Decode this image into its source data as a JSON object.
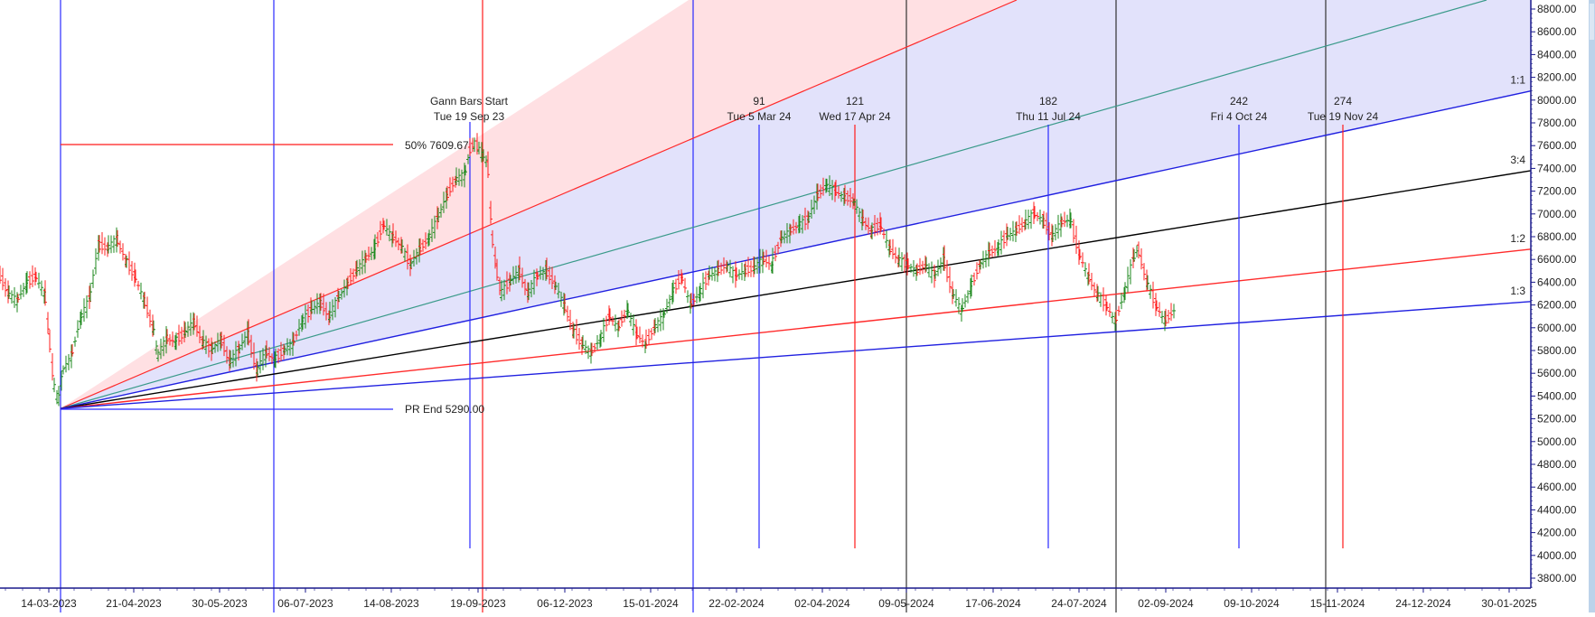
{
  "chart_data": {
    "type": "bar",
    "subtype": "ohlc-with-gann-fan",
    "title": "",
    "xlabel": "",
    "ylabel": "",
    "ylim": [
      3700,
      8850
    ],
    "grid": false,
    "colors": {
      "up": "#1f8a1f",
      "down": "#ff2020",
      "axis": "#1a1a8c",
      "fan_upper_fill": "#ffe0e3",
      "fan_lower_fill": "#e2e2fb"
    },
    "y_ticks": [
      "8800.00",
      "8600.00",
      "8400.00",
      "8200.00",
      "8000.00",
      "7800.00",
      "7600.00",
      "7400.00",
      "7200.00",
      "7000.00",
      "6800.00",
      "6600.00",
      "6400.00",
      "6200.00",
      "6000.00",
      "5800.00",
      "5600.00",
      "5400.00",
      "5200.00",
      "5000.00",
      "4800.00",
      "4600.00",
      "4400.00",
      "4200.00",
      "4000.00",
      "3800.00"
    ],
    "x_ticks": [
      "14-03-2023",
      "21-04-2023",
      "30-05-2023",
      "06-07-2023",
      "14-08-2023",
      "19-09-2023",
      "06-12-2023",
      "15-01-2024",
      "22-02-2024",
      "02-04-2024",
      "09-05-2024",
      "17-06-2024",
      "24-07-2024",
      "02-09-2024",
      "09-10-2024",
      "15-11-2024",
      "24-12-2024",
      "30-01-2025"
    ],
    "gann_fan": {
      "origin_price": 5290.0,
      "lines": [
        {
          "label": "1:1",
          "color": "#2020e0",
          "end_price": 8080
        },
        {
          "label": "3:4",
          "color": "#000000",
          "end_price": 7380
        },
        {
          "label": "1:2",
          "color": "#ff2a2a",
          "end_price": 6690
        },
        {
          "label": "1:3",
          "color": "#2020e0",
          "end_price": 6230
        }
      ]
    },
    "annotations": {
      "gann_start": {
        "line1": "Gann Bars Start",
        "line2": "Tue 19 Sep 23"
      },
      "fifty_pct": "50% 7609.67",
      "pr_end": "PR End 5290.00",
      "bar_counts": [
        {
          "count": "91",
          "date": "Tue 5 Mar 24"
        },
        {
          "count": "121",
          "date": "Wed 17 Apr 24"
        },
        {
          "count": "182",
          "date": "Thu 11 Jul 24"
        },
        {
          "count": "242",
          "date": "Fri 4 Oct 24"
        },
        {
          "count": "274",
          "date": "Tue 19 Nov 24"
        }
      ]
    },
    "price_path": [
      [
        0,
        6470
      ],
      [
        10,
        6300
      ],
      [
        20,
        6240
      ],
      [
        30,
        6380
      ],
      [
        40,
        6450
      ],
      [
        50,
        6300
      ],
      [
        55,
        5900
      ],
      [
        60,
        5500
      ],
      [
        65,
        5360
      ],
      [
        70,
        5620
      ],
      [
        80,
        5750
      ],
      [
        90,
        6080
      ],
      [
        100,
        6250
      ],
      [
        110,
        6720
      ],
      [
        120,
        6700
      ],
      [
        130,
        6780
      ],
      [
        140,
        6600
      ],
      [
        150,
        6450
      ],
      [
        160,
        6250
      ],
      [
        170,
        6000
      ],
      [
        175,
        5750
      ],
      [
        185,
        5900
      ],
      [
        195,
        5880
      ],
      [
        205,
        5950
      ],
      [
        215,
        6050
      ],
      [
        225,
        5880
      ],
      [
        235,
        5800
      ],
      [
        245,
        5900
      ],
      [
        255,
        5700
      ],
      [
        265,
        5800
      ],
      [
        275,
        5950
      ],
      [
        285,
        5620
      ],
      [
        295,
        5780
      ],
      [
        305,
        5720
      ],
      [
        315,
        5800
      ],
      [
        325,
        5860
      ],
      [
        335,
        6050
      ],
      [
        345,
        6150
      ],
      [
        355,
        6220
      ],
      [
        365,
        6100
      ],
      [
        375,
        6250
      ],
      [
        385,
        6380
      ],
      [
        395,
        6500
      ],
      [
        405,
        6600
      ],
      [
        415,
        6680
      ],
      [
        425,
        6900
      ],
      [
        435,
        6800
      ],
      [
        445,
        6720
      ],
      [
        455,
        6550
      ],
      [
        465,
        6680
      ],
      [
        475,
        6780
      ],
      [
        485,
        6950
      ],
      [
        495,
        7150
      ],
      [
        505,
        7300
      ],
      [
        515,
        7350
      ],
      [
        520,
        7550
      ],
      [
        525,
        7620
      ],
      [
        530,
        7580
      ],
      [
        535,
        7500
      ],
      [
        540,
        7450
      ],
      [
        545,
        6790
      ],
      [
        550,
        6500
      ],
      [
        555,
        6300
      ],
      [
        565,
        6400
      ],
      [
        575,
        6500
      ],
      [
        585,
        6300
      ],
      [
        595,
        6450
      ],
      [
        605,
        6500
      ],
      [
        615,
        6380
      ],
      [
        625,
        6200
      ],
      [
        635,
        5980
      ],
      [
        645,
        5850
      ],
      [
        655,
        5780
      ],
      [
        665,
        5900
      ],
      [
        675,
        6100
      ],
      [
        685,
        6000
      ],
      [
        695,
        6150
      ],
      [
        705,
        5950
      ],
      [
        715,
        5850
      ],
      [
        725,
        6000
      ],
      [
        735,
        6100
      ],
      [
        745,
        6300
      ],
      [
        755,
        6450
      ],
      [
        765,
        6200
      ],
      [
        775,
        6300
      ],
      [
        785,
        6450
      ],
      [
        795,
        6500
      ],
      [
        805,
        6550
      ],
      [
        815,
        6450
      ],
      [
        825,
        6500
      ],
      [
        835,
        6520
      ],
      [
        845,
        6600
      ],
      [
        855,
        6550
      ],
      [
        865,
        6780
      ],
      [
        875,
        6850
      ],
      [
        885,
        6900
      ],
      [
        895,
        6950
      ],
      [
        905,
        7150
      ],
      [
        915,
        7250
      ],
      [
        925,
        7200
      ],
      [
        935,
        7150
      ],
      [
        945,
        7120
      ],
      [
        955,
        6950
      ],
      [
        965,
        6850
      ],
      [
        975,
        6900
      ],
      [
        985,
        6700
      ],
      [
        995,
        6600
      ],
      [
        1005,
        6550
      ],
      [
        1015,
        6500
      ],
      [
        1025,
        6550
      ],
      [
        1035,
        6450
      ],
      [
        1045,
        6600
      ],
      [
        1055,
        6300
      ],
      [
        1065,
        6150
      ],
      [
        1075,
        6350
      ],
      [
        1085,
        6550
      ],
      [
        1095,
        6650
      ],
      [
        1105,
        6700
      ],
      [
        1115,
        6800
      ],
      [
        1125,
        6850
      ],
      [
        1135,
        6920
      ],
      [
        1145,
        7000
      ],
      [
        1155,
        6950
      ],
      [
        1165,
        6800
      ],
      [
        1175,
        6920
      ],
      [
        1185,
        6950
      ],
      [
        1195,
        6650
      ],
      [
        1205,
        6450
      ],
      [
        1215,
        6300
      ],
      [
        1225,
        6200
      ],
      [
        1235,
        6050
      ],
      [
        1245,
        6300
      ],
      [
        1255,
        6600
      ],
      [
        1260,
        6700
      ],
      [
        1270,
        6400
      ],
      [
        1280,
        6200
      ],
      [
        1290,
        6050
      ],
      [
        1300,
        6150
      ]
    ]
  }
}
